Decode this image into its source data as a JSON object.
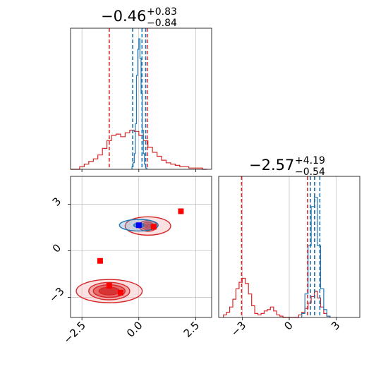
{
  "colors": {
    "red": "#d62728",
    "blue": "#1f77b4",
    "marker_red": "#ff0000",
    "marker_blue": "#0000ff",
    "grid": "#b0b0b0"
  },
  "chart_data": [
    {
      "type": "histogram",
      "panel": "top-left",
      "title": {
        "value": "−0.46",
        "upper": "+0.83",
        "lower": "−0.84"
      },
      "xlim": [
        -3.0,
        3.2
      ],
      "grid": true,
      "series": [
        {
          "name": "",
          "color": "red",
          "x": [
            -3.0,
            -2.8,
            -2.6,
            -2.4,
            -2.2,
            -2.0,
            -1.8,
            -1.6,
            -1.4,
            -1.2,
            -1.0,
            -0.8,
            -0.6,
            -0.4,
            -0.2,
            0.0,
            0.2,
            0.4,
            0.6,
            0.8,
            1.0,
            1.2,
            1.4,
            1.6,
            1.8,
            2.0,
            2.2,
            2.4,
            2.6,
            2.8
          ],
          "heights": [
            0.0,
            0.0,
            0.02,
            0.04,
            0.06,
            0.08,
            0.11,
            0.16,
            0.22,
            0.26,
            0.27,
            0.25,
            0.28,
            0.3,
            0.29,
            0.26,
            0.22,
            0.17,
            0.13,
            0.1,
            0.07,
            0.05,
            0.04,
            0.03,
            0.02,
            0.02,
            0.01,
            0.01,
            0.01,
            0.0
          ]
        },
        {
          "name": "",
          "color": "blue",
          "x": [
            -0.3,
            -0.25,
            -0.2,
            -0.15,
            -0.1,
            -0.05,
            0.0,
            0.05,
            0.1,
            0.15,
            0.2,
            0.25,
            0.3
          ],
          "heights": [
            0.02,
            0.05,
            0.12,
            0.35,
            0.72,
            0.92,
            1.0,
            0.85,
            0.58,
            0.3,
            0.12,
            0.04,
            0.01
          ]
        }
      ],
      "vlines": [
        {
          "color": "red",
          "x": [
            -1.3,
            0.37
          ]
        },
        {
          "color": "blue",
          "x": [
            -0.27,
            0.14,
            0.3
          ]
        }
      ]
    },
    {
      "type": "histogram",
      "panel": "bottom-right",
      "title": {
        "value": "−2.57",
        "upper": "+4.19",
        "lower": "−0.54"
      },
      "xlim": [
        -4.5,
        4.5
      ],
      "xticks": [
        "−3",
        "0",
        "3"
      ],
      "grid": true,
      "series": [
        {
          "name": "",
          "color": "red",
          "x": [
            -4.2,
            -4.0,
            -3.8,
            -3.6,
            -3.4,
            -3.2,
            -3.0,
            -2.8,
            -2.6,
            -2.4,
            -2.2,
            -2.0,
            -1.8,
            -1.6,
            -1.4,
            -1.2,
            -1.0,
            -0.8,
            -0.6,
            -0.4,
            -0.2,
            0.0,
            0.2,
            0.4,
            0.6,
            0.8,
            1.0,
            1.2,
            1.4,
            1.6,
            1.8,
            2.0,
            2.2,
            2.4
          ],
          "heights": [
            0.02,
            0.04,
            0.08,
            0.14,
            0.22,
            0.27,
            0.3,
            0.26,
            0.18,
            0.09,
            0.03,
            0.02,
            0.03,
            0.05,
            0.06,
            0.08,
            0.05,
            0.02,
            0.01,
            0.0,
            0.0,
            0.0,
            0.0,
            0.0,
            0.02,
            0.04,
            0.07,
            0.11,
            0.16,
            0.2,
            0.15,
            0.08,
            0.03,
            0.01
          ]
        },
        {
          "name": "",
          "color": "blue",
          "x": [
            0.8,
            1.0,
            1.2,
            1.4,
            1.6,
            1.8,
            2.0,
            2.2,
            2.4
          ],
          "heights": [
            0.03,
            0.18,
            0.55,
            0.85,
            0.92,
            0.55,
            0.22,
            0.06,
            0.01
          ]
        }
      ],
      "vlines": [
        {
          "color": "red",
          "x": [
            -3.04,
            1.17,
            1.62
          ]
        },
        {
          "color": "blue",
          "x": [
            1.35,
            1.62,
            1.95
          ]
        }
      ]
    },
    {
      "type": "scatter",
      "panel": "bottom-left",
      "xlim": [
        -3.0,
        3.2
      ],
      "ylim": [
        -4.3,
        4.8
      ],
      "xticks": [
        "−2.5",
        "0.0",
        "2.5"
      ],
      "yticks": [
        "−3",
        "0",
        "3"
      ],
      "grid": true,
      "contour_regions": [
        {
          "color": "red",
          "center": [
            0.4,
            1.6
          ],
          "half_width": [
            2.0,
            0.8,
            0.55,
            0.3
          ],
          "half_height": [
            0.95,
            0.55,
            0.38,
            0.22
          ]
        },
        {
          "color": "red",
          "center": [
            -1.3,
            -2.6
          ],
          "half_width": [
            2.9,
            1.8,
            1.4,
            0.9
          ],
          "half_height": [
            1.2,
            0.9,
            0.65,
            0.4
          ]
        },
        {
          "color": "blue",
          "center": [
            0.0,
            1.65
          ],
          "half_width": [
            1.7,
            0.45
          ],
          "half_height": [
            0.6,
            0.22
          ]
        }
      ],
      "markers": [
        {
          "color": "marker_red",
          "points": [
            [
              1.85,
              2.55
            ],
            [
              0.65,
              1.55
            ],
            [
              -1.7,
              -0.65
            ],
            [
              -1.3,
              -2.25
            ],
            [
              -0.8,
              -2.7
            ]
          ]
        },
        {
          "color": "marker_blue",
          "points": [
            [
              0.0,
              1.65
            ]
          ]
        }
      ]
    }
  ]
}
